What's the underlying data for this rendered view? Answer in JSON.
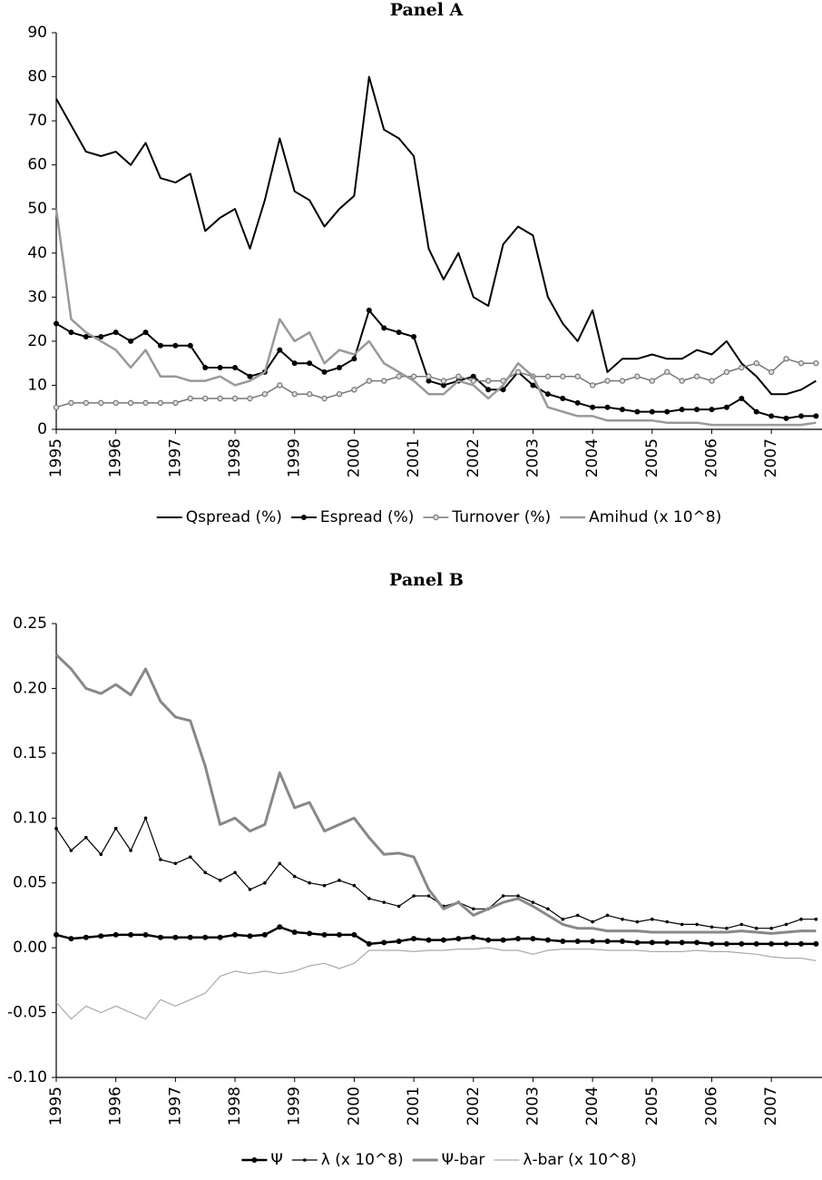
{
  "chart_data": [
    {
      "type": "line",
      "title": "Panel A",
      "x": [
        1995,
        1995.25,
        1995.5,
        1995.75,
        1996,
        1996.25,
        1996.5,
        1996.75,
        1997,
        1997.25,
        1997.5,
        1997.75,
        1998,
        1998.25,
        1998.5,
        1998.75,
        1999,
        1999.25,
        1999.5,
        1999.75,
        2000,
        2000.25,
        2000.5,
        2000.75,
        2001,
        2001.25,
        2001.5,
        2001.75,
        2002,
        2002.25,
        2002.5,
        2002.75,
        2003,
        2003.25,
        2003.5,
        2003.75,
        2004,
        2004.25,
        2004.5,
        2004.75,
        2005,
        2005.25,
        2005.5,
        2005.75,
        2006,
        2006.25,
        2006.5,
        2006.75,
        2007,
        2007.25,
        2007.5,
        2007.75
      ],
      "xlim": [
        1995,
        2007.85
      ],
      "xticks": [
        1995,
        1996,
        1997,
        1998,
        1999,
        2000,
        2001,
        2002,
        2003,
        2004,
        2005,
        2006,
        2007
      ],
      "ylim": [
        0,
        90
      ],
      "yticks": [
        0,
        10,
        20,
        30,
        40,
        50,
        60,
        70,
        80,
        90
      ],
      "series": [
        {
          "name": "Qspread (%)",
          "color": "#000000",
          "line_width": 2,
          "marker": "none",
          "values": [
            75,
            69,
            63,
            62,
            63,
            60,
            65,
            57,
            56,
            58,
            45,
            48,
            50,
            41,
            52,
            66,
            54,
            52,
            46,
            50,
            53,
            80,
            68,
            66,
            62,
            41,
            34,
            40,
            30,
            28,
            42,
            46,
            44,
            30,
            24,
            20,
            27,
            13,
            16,
            16,
            17,
            16,
            16,
            18,
            17,
            20,
            15,
            12,
            8,
            8,
            9,
            11
          ]
        },
        {
          "name": "Espread (%)",
          "color": "#000000",
          "line_width": 2,
          "marker": "dot",
          "values": [
            24,
            22,
            21,
            21,
            22,
            20,
            22,
            19,
            19,
            19,
            14,
            14,
            14,
            12,
            13,
            18,
            15,
            15,
            13,
            14,
            16,
            27,
            23,
            22,
            21,
            11,
            10,
            11,
            12,
            9,
            9,
            13,
            10,
            8,
            7,
            6,
            5,
            5,
            4.5,
            4,
            4,
            4,
            4.5,
            4.5,
            4.5,
            5,
            7,
            4,
            3,
            2.5,
            3,
            3
          ]
        },
        {
          "name": "Turnover (%)",
          "color": "#777777",
          "line_width": 1.5,
          "marker": "circle",
          "values": [
            5,
            6,
            6,
            6,
            6,
            6,
            6,
            6,
            6,
            7,
            7,
            7,
            7,
            7,
            8,
            10,
            8,
            8,
            7,
            8,
            9,
            11,
            11,
            12,
            12,
            12,
            11,
            12,
            11,
            11,
            11,
            13,
            12,
            12,
            12,
            12,
            10,
            11,
            11,
            12,
            11,
            13,
            11,
            12,
            11,
            13,
            14,
            15,
            13,
            16,
            15,
            15
          ]
        },
        {
          "name": "Amihud (x 10^8)",
          "color": "#999999",
          "line_width": 2.5,
          "marker": "none",
          "values": [
            50,
            25,
            22,
            20,
            18,
            14,
            18,
            12,
            12,
            11,
            11,
            12,
            10,
            11,
            13,
            25,
            20,
            22,
            15,
            18,
            17,
            20,
            15,
            13,
            11,
            8,
            8,
            11,
            10,
            7,
            10,
            15,
            12,
            5,
            4,
            3,
            3,
            2,
            2,
            2,
            2,
            1.5,
            1.5,
            1.5,
            1,
            1,
            1,
            1,
            1,
            1,
            1,
            1.5
          ]
        }
      ]
    },
    {
      "type": "line",
      "title": "Panel B",
      "x": [
        1995,
        1995.25,
        1995.5,
        1995.75,
        1996,
        1996.25,
        1996.5,
        1996.75,
        1997,
        1997.25,
        1997.5,
        1997.75,
        1998,
        1998.25,
        1998.5,
        1998.75,
        1999,
        1999.25,
        1999.5,
        1999.75,
        2000,
        2000.25,
        2000.5,
        2000.75,
        2001,
        2001.25,
        2001.5,
        2001.75,
        2002,
        2002.25,
        2002.5,
        2002.75,
        2003,
        2003.25,
        2003.5,
        2003.75,
        2004,
        2004.25,
        2004.5,
        2004.75,
        2005,
        2005.25,
        2005.5,
        2005.75,
        2006,
        2006.25,
        2006.5,
        2006.75,
        2007,
        2007.25,
        2007.5,
        2007.75
      ],
      "xlim": [
        1995,
        2007.85
      ],
      "xticks": [
        1995,
        1996,
        1997,
        1998,
        1999,
        2000,
        2001,
        2002,
        2003,
        2004,
        2005,
        2006,
        2007
      ],
      "ylim": [
        -0.1,
        0.25
      ],
      "yticks": [
        {
          "value": -0.1,
          "label": "-0.10"
        },
        {
          "value": -0.05,
          "label": "-0.05"
        },
        {
          "value": 0,
          "label": "0.00"
        },
        {
          "value": 0.05,
          "label": "0.05"
        },
        {
          "value": 0.1,
          "label": "0.10"
        },
        {
          "value": 0.15,
          "label": "0.15"
        },
        {
          "value": 0.2,
          "label": "0.20"
        },
        {
          "value": 0.25,
          "label": "0.25"
        }
      ],
      "series": [
        {
          "name": "Ψ",
          "color": "#000000",
          "line_width": 2.5,
          "marker": "dot",
          "values": [
            0.01,
            0.007,
            0.008,
            0.009,
            0.01,
            0.01,
            0.01,
            0.008,
            0.008,
            0.008,
            0.008,
            0.008,
            0.01,
            0.009,
            0.01,
            0.016,
            0.012,
            0.011,
            0.01,
            0.01,
            0.01,
            0.003,
            0.004,
            0.005,
            0.007,
            0.006,
            0.006,
            0.007,
            0.008,
            0.006,
            0.006,
            0.007,
            0.007,
            0.006,
            0.005,
            0.005,
            0.005,
            0.005,
            0.005,
            0.004,
            0.004,
            0.004,
            0.004,
            0.004,
            0.003,
            0.003,
            0.003,
            0.003,
            0.003,
            0.003,
            0.003,
            0.003
          ]
        },
        {
          "name": "λ (x 10^8)",
          "color": "#000000",
          "line_width": 1.2,
          "marker": "small",
          "values": [
            0.092,
            0.075,
            0.085,
            0.072,
            0.092,
            0.075,
            0.1,
            0.068,
            0.065,
            0.07,
            0.058,
            0.052,
            0.058,
            0.045,
            0.05,
            0.065,
            0.055,
            0.05,
            0.048,
            0.052,
            0.048,
            0.038,
            0.035,
            0.032,
            0.04,
            0.04,
            0.032,
            0.035,
            0.03,
            0.03,
            0.04,
            0.04,
            0.035,
            0.03,
            0.022,
            0.025,
            0.02,
            0.025,
            0.022,
            0.02,
            0.022,
            0.02,
            0.018,
            0.018,
            0.016,
            0.015,
            0.018,
            0.015,
            0.015,
            0.018,
            0.022,
            0.022
          ]
        },
        {
          "name": "Ψ-bar",
          "color": "#888888",
          "line_width": 3,
          "marker": "none",
          "values": [
            0.226,
            0.215,
            0.2,
            0.196,
            0.203,
            0.195,
            0.215,
            0.19,
            0.178,
            0.175,
            0.14,
            0.095,
            0.1,
            0.09,
            0.095,
            0.135,
            0.108,
            0.112,
            0.09,
            0.095,
            0.1,
            0.085,
            0.072,
            0.073,
            0.07,
            0.045,
            0.03,
            0.035,
            0.025,
            0.03,
            0.035,
            0.038,
            0.032,
            0.025,
            0.018,
            0.015,
            0.015,
            0.013,
            0.013,
            0.013,
            0.012,
            0.012,
            0.012,
            0.012,
            0.012,
            0.012,
            0.013,
            0.012,
            0.011,
            0.012,
            0.013,
            0.013
          ]
        },
        {
          "name": "λ-bar (x 10^8)",
          "color": "#aaaaaa",
          "line_width": 1.2,
          "marker": "none",
          "values": [
            -0.042,
            -0.055,
            -0.045,
            -0.05,
            -0.045,
            -0.05,
            -0.055,
            -0.04,
            -0.045,
            -0.04,
            -0.035,
            -0.022,
            -0.018,
            -0.02,
            -0.018,
            -0.02,
            -0.018,
            -0.014,
            -0.012,
            -0.016,
            -0.012,
            -0.002,
            -0.002,
            -0.002,
            -0.003,
            -0.002,
            -0.002,
            -0.001,
            -0.001,
            0.0,
            -0.002,
            -0.002,
            -0.005,
            -0.002,
            -0.001,
            -0.001,
            -0.001,
            -0.002,
            -0.002,
            -0.002,
            -0.003,
            -0.003,
            -0.003,
            -0.002,
            -0.003,
            -0.003,
            -0.004,
            -0.005,
            -0.007,
            -0.008,
            -0.008,
            -0.01
          ]
        }
      ]
    }
  ]
}
